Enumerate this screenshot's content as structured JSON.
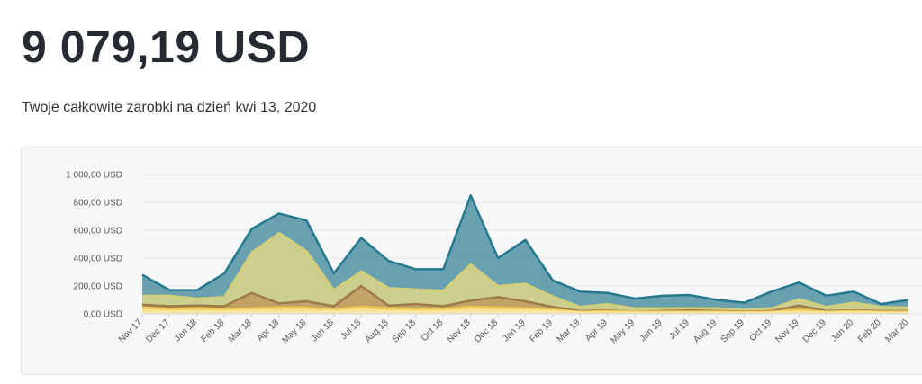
{
  "header": {
    "total": "9 079,19 USD",
    "subtitle": "Twoje całkowite zarobki na dzień kwi 13, 2020"
  },
  "chart_data": {
    "type": "area",
    "stacked": false,
    "title": "",
    "xlabel": "",
    "ylabel": "",
    "ylim": [
      0,
      1000
    ],
    "yticks": [
      0,
      200,
      400,
      600,
      800,
      1000
    ],
    "ytick_labels": [
      "0,00 USD",
      "200,00 USD",
      "400,00 USD",
      "600,00 USD",
      "800,00 USD",
      "1 000,00 USD"
    ],
    "grid": true,
    "legend": "none",
    "categories": [
      "Nov 17",
      "Dec 17",
      "Jan 18",
      "Feb 18",
      "Mar 18",
      "Apr 18",
      "May 18",
      "Jun 18",
      "Jul 18",
      "Aug 18",
      "Sep 18",
      "Oct 18",
      "Nov 18",
      "Dec 18",
      "Jan 19",
      "Feb 19",
      "Mar 19",
      "Apr 19",
      "May 19",
      "Jun 19",
      "Jul 19",
      "Aug 19",
      "Sep 19",
      "Oct 19",
      "Nov 19",
      "Dec 19",
      "Jan 20",
      "Feb 20",
      "Mar 20"
    ],
    "series": [
      {
        "color": "#24798f",
        "fill": "#5a97a8",
        "values": [
          280,
          170,
          170,
          290,
          610,
          720,
          670,
          290,
          545,
          380,
          320,
          320,
          850,
          400,
          530,
          240,
          160,
          150,
          110,
          130,
          135,
          100,
          80,
          160,
          225,
          130,
          160,
          70,
          100
        ]
      },
      {
        "color": "#d2cf78",
        "fill": "#d7d38a",
        "values": [
          130,
          130,
          110,
          120,
          440,
          580,
          450,
          170,
          305,
          185,
          175,
          165,
          355,
          200,
          215,
          125,
          50,
          70,
          40,
          40,
          40,
          40,
          30,
          40,
          105,
          50,
          80,
          50,
          45
        ]
      },
      {
        "color": "#9c7a4a",
        "fill": "#c0a060",
        "values": [
          65,
          55,
          60,
          55,
          150,
          75,
          90,
          55,
          200,
          60,
          70,
          55,
          95,
          120,
          90,
          50,
          20,
          25,
          15,
          20,
          25,
          20,
          15,
          20,
          60,
          20,
          25,
          20,
          20
        ]
      },
      {
        "color": "#f2c94c",
        "fill": "#f4d368",
        "values": [
          45,
          35,
          40,
          35,
          40,
          45,
          45,
          30,
          50,
          40,
          35,
          35,
          50,
          45,
          40,
          30,
          15,
          20,
          15,
          15,
          15,
          15,
          12,
          15,
          30,
          15,
          20,
          15,
          15
        ]
      },
      {
        "color": "#f7e39a",
        "fill": "#f8eab0",
        "values": [
          25,
          20,
          20,
          20,
          25,
          25,
          25,
          20,
          30,
          20,
          20,
          20,
          30,
          25,
          25,
          20,
          10,
          10,
          10,
          10,
          10,
          10,
          8,
          10,
          15,
          10,
          12,
          10,
          10
        ]
      }
    ]
  }
}
